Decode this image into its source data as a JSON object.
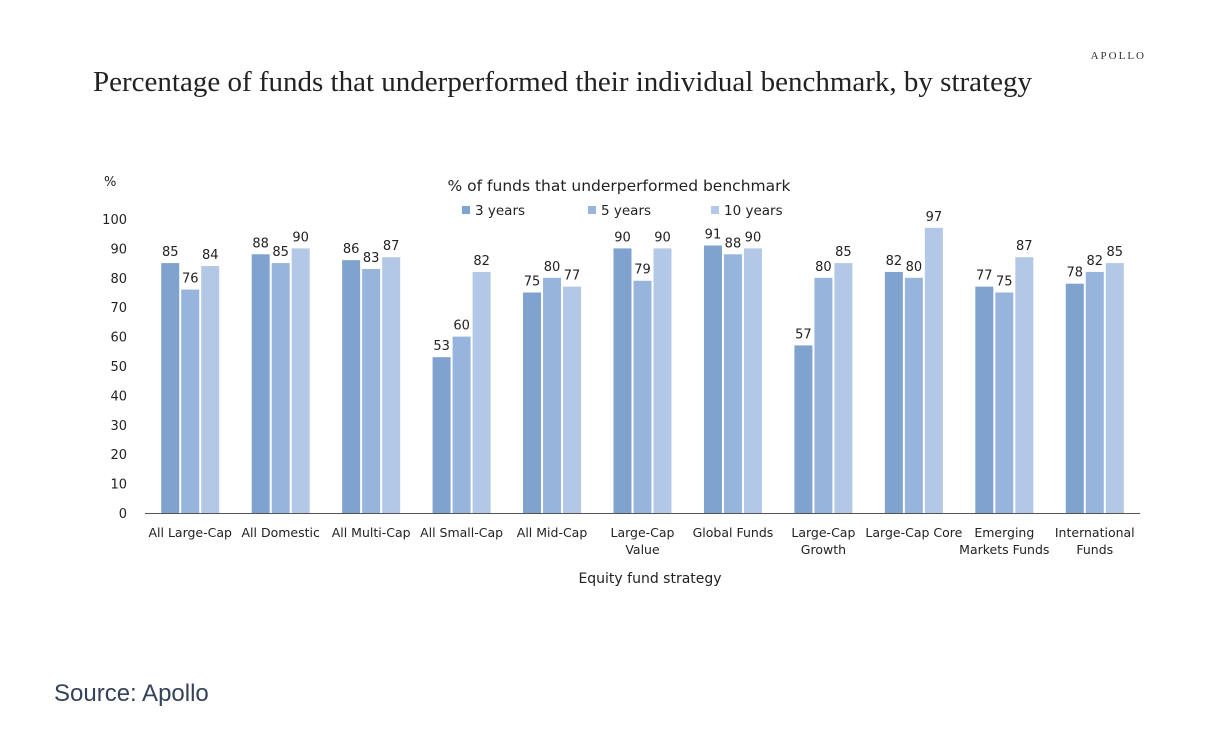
{
  "brand": "APOLLO",
  "title": "Percentage of  funds that underperformed their individual benchmark, by strategy",
  "source": "Source: Apollo",
  "chart_data": {
    "type": "bar",
    "title": "% of funds that underperformed benchmark",
    "ylabel": "%",
    "xlabel": "Equity fund strategy",
    "ylim": [
      0,
      100
    ],
    "yticks": [
      0,
      10,
      20,
      30,
      40,
      50,
      60,
      70,
      80,
      90,
      100
    ],
    "grid": false,
    "legend": "top-center",
    "categories": [
      "All Large-Cap",
      "All Domestic",
      "All Multi-Cap",
      "All Small-Cap",
      "All Mid-Cap",
      "Large-Cap Value",
      "Global Funds",
      "Large-Cap Growth",
      "Large-Cap Core",
      "Emerging Markets Funds",
      "International Funds"
    ],
    "category_lines": [
      [
        "All Large-Cap"
      ],
      [
        "All Domestic"
      ],
      [
        "All Multi-Cap"
      ],
      [
        "All Small-Cap"
      ],
      [
        "All Mid-Cap"
      ],
      [
        "Large-Cap",
        "Value"
      ],
      [
        "Global Funds"
      ],
      [
        "Large-Cap",
        "Growth"
      ],
      [
        "Large-Cap Core"
      ],
      [
        "Emerging",
        "Markets Funds"
      ],
      [
        "International",
        "Funds"
      ]
    ],
    "series": [
      {
        "name": "3 years",
        "color": "#7fa2cf",
        "values": [
          85,
          88,
          86,
          53,
          75,
          90,
          91,
          57,
          82,
          77,
          78
        ]
      },
      {
        "name": "5 years",
        "color": "#97b4dc",
        "values": [
          76,
          85,
          83,
          60,
          80,
          79,
          88,
          80,
          80,
          75,
          82
        ]
      },
      {
        "name": "10 years",
        "color": "#b3c8e6",
        "values": [
          84,
          90,
          87,
          82,
          77,
          90,
          90,
          85,
          97,
          87,
          85
        ]
      }
    ]
  }
}
